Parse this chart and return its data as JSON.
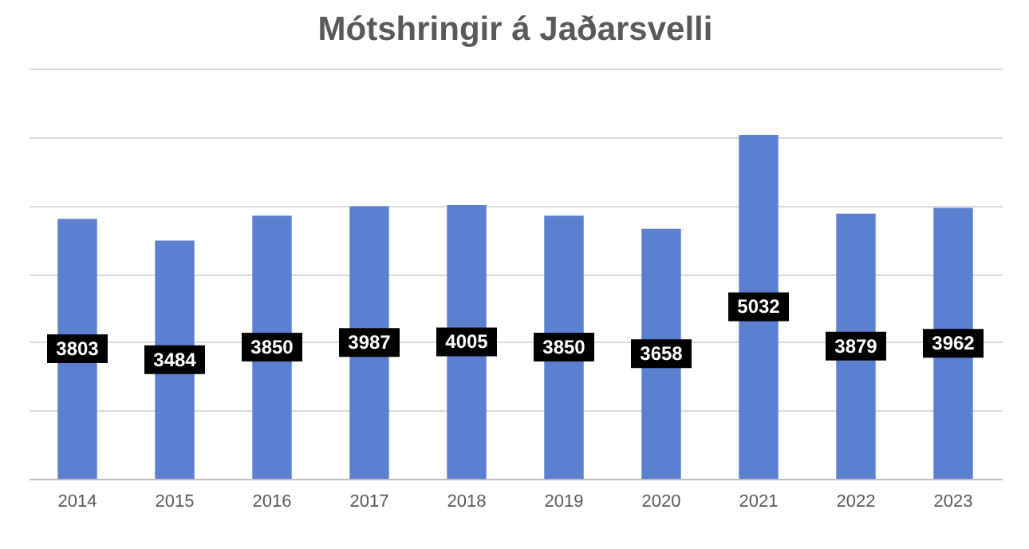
{
  "chart_data": {
    "type": "bar",
    "title": "Mótshringir á Jaðarsvelli",
    "categories": [
      "2014",
      "2015",
      "2016",
      "2017",
      "2018",
      "2019",
      "2020",
      "2021",
      "2022",
      "2023"
    ],
    "values": [
      3803,
      3484,
      3850,
      3987,
      4005,
      3850,
      3658,
      5032,
      3879,
      3962
    ],
    "color": "#5b80cf",
    "data_labels": true,
    "grid": "y",
    "tick_labels": "x",
    "ylim": [
      0,
      6000
    ],
    "yticks": [
      {
        "value": 0,
        "label": null
      },
      {
        "value": 1000,
        "label": null
      },
      {
        "value": 2000,
        "label": null
      },
      {
        "value": 3000,
        "label": null
      },
      {
        "value": 4000,
        "label": null
      },
      {
        "value": 5000,
        "label": null
      },
      {
        "value": 6000,
        "label": null
      }
    ]
  }
}
